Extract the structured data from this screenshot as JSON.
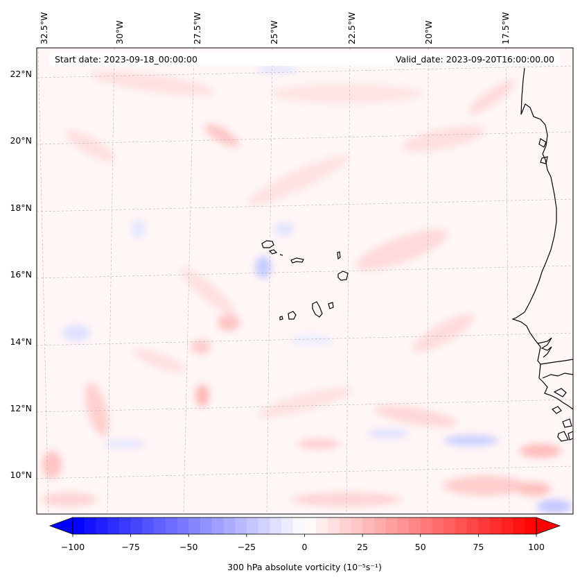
{
  "header": {
    "start_date": "Start date: 2023-09-18_00:00:00",
    "valid_date": "Valid_date: 2023-09-20T16:00:00.00"
  },
  "longitude_labels": [
    "32.5°W",
    "30°W",
    "27.5°W",
    "25°W",
    "22.5°W",
    "20°W",
    "17.5°W"
  ],
  "latitude_labels": [
    "22°N",
    "20°N",
    "18°N",
    "16°N",
    "14°N",
    "12°N",
    "10°N"
  ],
  "colorbar": {
    "label": "300 hPa absolute vorticity (10⁻⁵s⁻¹)",
    "tick_labels": [
      "−100",
      "−75",
      "−50",
      "−25",
      "0",
      "25",
      "50",
      "75",
      "100"
    ],
    "min": -100,
    "max": 100,
    "step": 5,
    "negative_color": "#0000ff",
    "positive_color": "#ff0000",
    "neutral_color": "#ffffff"
  },
  "map": {
    "variable": "300 hPa absolute vorticity",
    "extent_lon": [
      "~33.4°W",
      "~16°W"
    ],
    "extent_lat": [
      "~8.9°N",
      "~22.8°N"
    ],
    "features": [
      "Cape Verde islands",
      "West African coastline"
    ],
    "gridlines": true,
    "background_color": "#fff6f6"
  }
}
